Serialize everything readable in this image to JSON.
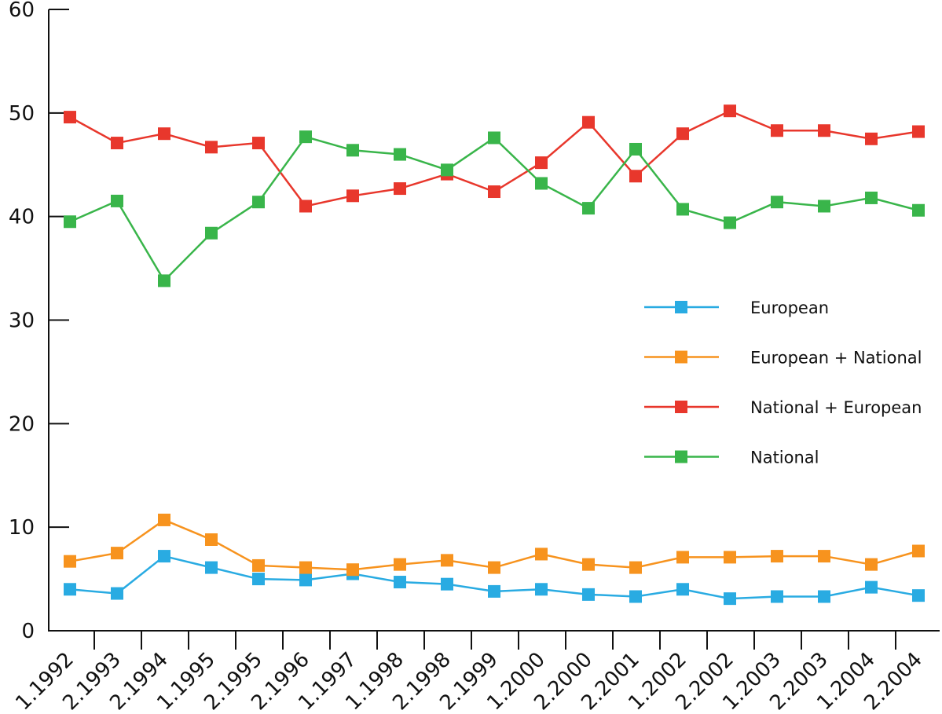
{
  "chart_data": {
    "type": "line",
    "categories": [
      "1.1992",
      "2.1993",
      "2.1994",
      "1.1995",
      "2.1995",
      "2.1996",
      "1.1997",
      "1.1998",
      "2.1998",
      "2.1999",
      "1.2000",
      "2.2000",
      "2.2001",
      "1.2002",
      "2.2002",
      "1.2003",
      "2.2003",
      "1.2004",
      "2.2004"
    ],
    "series": [
      {
        "name": "European",
        "color": "#29abe2",
        "values": [
          4.0,
          3.6,
          7.2,
          6.1,
          5.0,
          4.9,
          5.5,
          4.7,
          4.5,
          3.8,
          4.0,
          3.5,
          3.3,
          4.0,
          3.1,
          3.3,
          3.3,
          4.2,
          3.4
        ]
      },
      {
        "name": "European + National",
        "color": "#f7931e",
        "values": [
          6.7,
          7.5,
          10.7,
          8.8,
          6.3,
          6.1,
          5.9,
          6.4,
          6.8,
          6.1,
          7.4,
          6.4,
          6.1,
          7.1,
          7.1,
          7.2,
          7.2,
          6.4,
          7.7
        ]
      },
      {
        "name": "National + European",
        "color": "#e8372c",
        "values": [
          49.6,
          47.1,
          48.0,
          46.7,
          47.1,
          41.0,
          42.0,
          42.7,
          44.1,
          42.4,
          45.2,
          49.1,
          43.9,
          48.0,
          50.2,
          48.3,
          48.3,
          47.5,
          48.2
        ]
      },
      {
        "name": "National",
        "color": "#39b54a",
        "values": [
          39.5,
          41.5,
          33.8,
          38.4,
          41.4,
          47.7,
          46.4,
          46.0,
          44.5,
          47.6,
          43.2,
          40.8,
          46.5,
          40.7,
          39.4,
          41.4,
          41.0,
          41.8,
          40.6
        ]
      }
    ],
    "ylim": [
      0,
      60
    ],
    "yticks": [
      0,
      10,
      20,
      30,
      40,
      50,
      60
    ],
    "grid": false,
    "legend": "right"
  }
}
